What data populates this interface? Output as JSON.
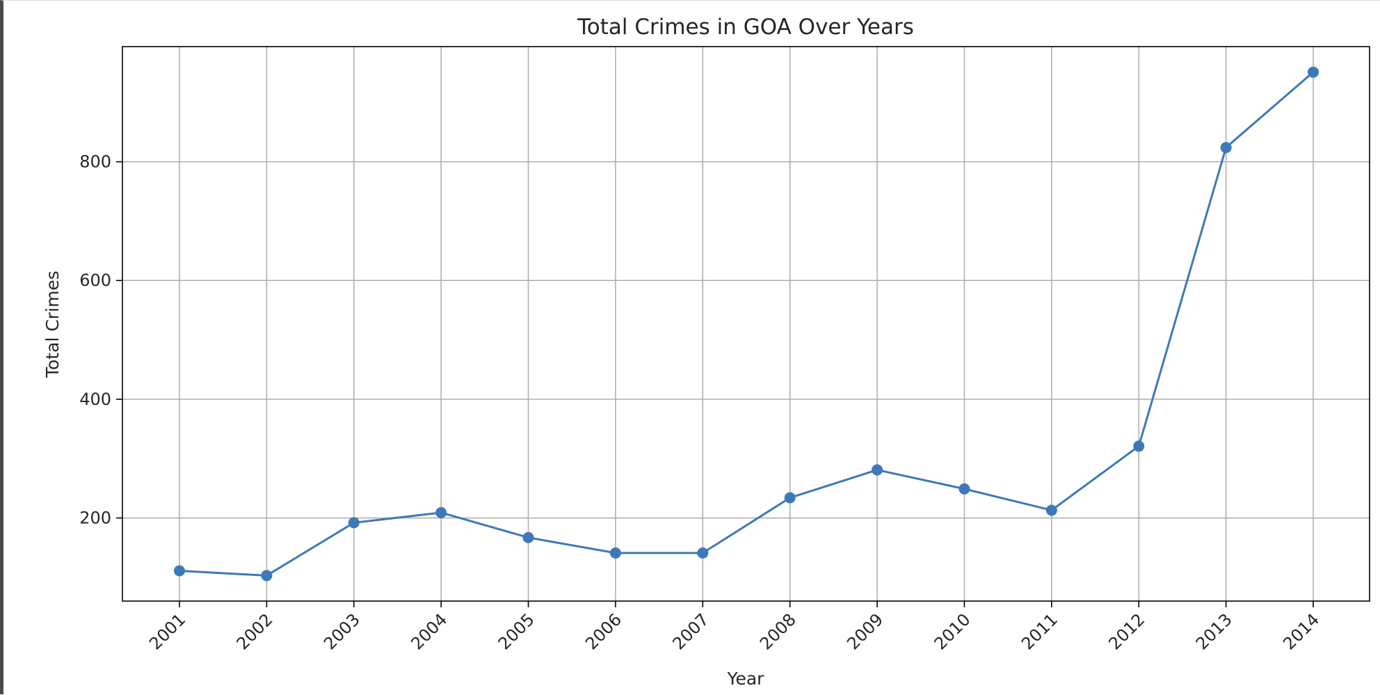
{
  "chart_data": {
    "type": "line",
    "title": "Total Crimes in GOA Over Years",
    "xlabel": "Year",
    "ylabel": "Total Crimes",
    "categories": [
      "2001",
      "2002",
      "2003",
      "2004",
      "2005",
      "2006",
      "2007",
      "2008",
      "2009",
      "2010",
      "2011",
      "2012",
      "2013",
      "2014"
    ],
    "series": [
      {
        "values": [
          111,
          103,
          192,
          209,
          167,
          141,
          141,
          234,
          281,
          249,
          213,
          321,
          824,
          951
        ],
        "color": "#3d79b8",
        "marker": "circle"
      }
    ],
    "ylim": [
      60,
      994
    ],
    "yticks": [
      200,
      400,
      600,
      800
    ],
    "grid": true,
    "legend": "none"
  }
}
